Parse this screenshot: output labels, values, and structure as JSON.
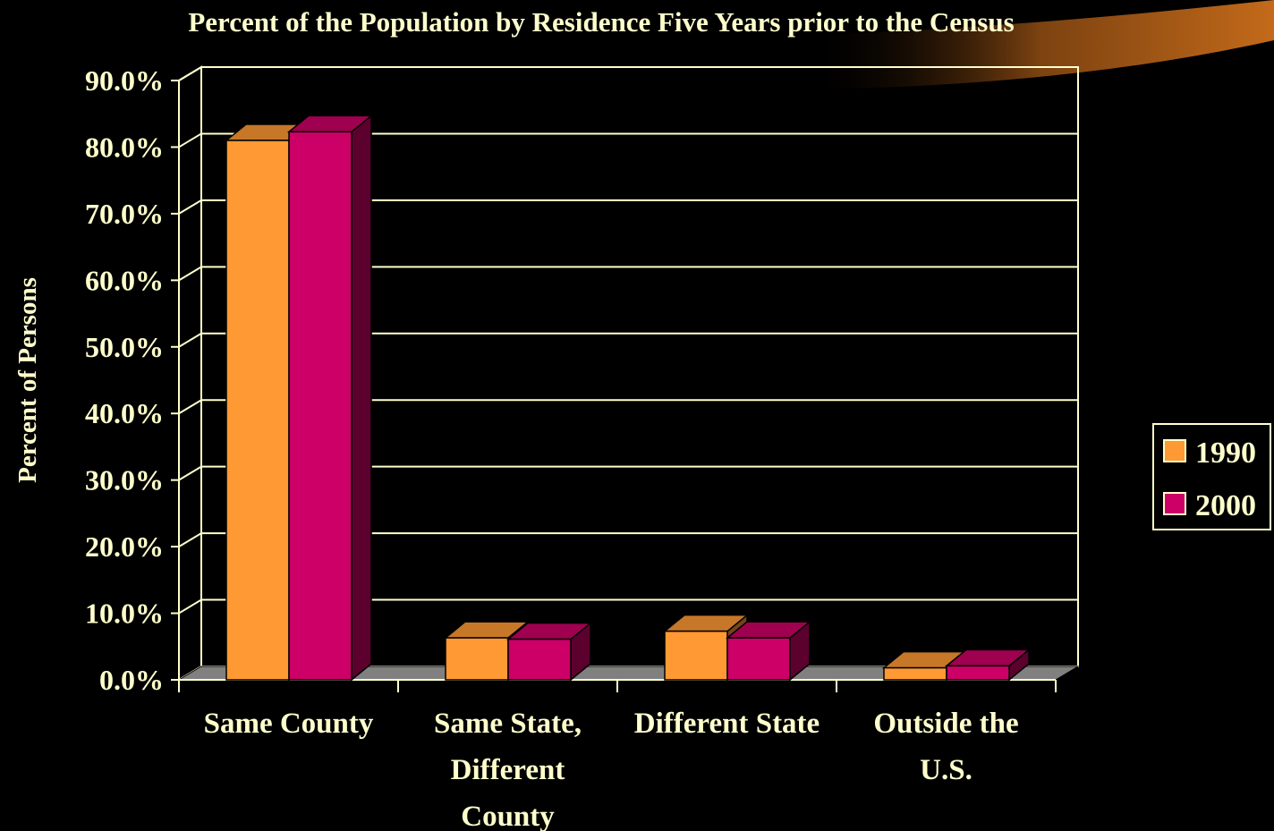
{
  "chart_data": {
    "type": "bar",
    "title": "Percent of the Population by Residence Five Years prior to the Census",
    "xlabel": "",
    "ylabel": "Percent of Persons",
    "categories": [
      "Same County",
      "Same State, Different County",
      "Different State",
      "Outside the U.S."
    ],
    "category_lines": [
      [
        "Same County"
      ],
      [
        "Same State,",
        "Different",
        "County"
      ],
      [
        "Different State"
      ],
      [
        "Outside the",
        "U.S."
      ]
    ],
    "series": [
      {
        "name": "1990",
        "values": [
          81.0,
          6.3,
          7.3,
          1.8
        ]
      },
      {
        "name": "2000",
        "values": [
          82.3,
          6.1,
          6.3,
          2.1
        ]
      }
    ],
    "ylim": [
      0,
      90
    ],
    "yticks": [
      "0.0%",
      "10.0%",
      "20.0%",
      "30.0%",
      "40.0%",
      "50.0%",
      "60.0%",
      "70.0%",
      "80.0%",
      "90.0%"
    ],
    "grid": true,
    "legend_position": "right",
    "colors": {
      "background": "#000000",
      "text": "#FFFFCC",
      "axis": "#FFFFCC",
      "floor": "#808080",
      "series_1990": "#FF9933",
      "series_2000": "#CC0066",
      "accent_orange": "#C46A1A"
    }
  }
}
